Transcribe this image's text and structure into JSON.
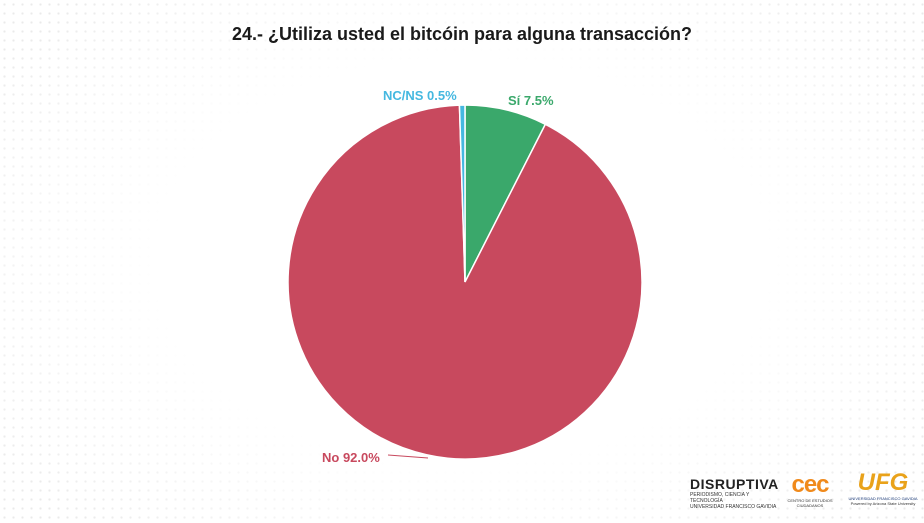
{
  "title": "24.- ¿Utiliza usted el bitcóin para alguna transacción?",
  "chart_data": {
    "type": "pie",
    "title": "24.- ¿Utiliza usted el bitcóin para alguna transacción?",
    "slices": [
      {
        "label": "Sí",
        "value": 7.5,
        "display": "Sí 7.5%",
        "color": "#3aa86b"
      },
      {
        "label": "No",
        "value": 92.0,
        "display": "No 92.0%",
        "color": "#c8495e"
      },
      {
        "label": "NC/NS",
        "value": 0.5,
        "display": "NC/NS 0.5%",
        "color": "#45b8e0"
      }
    ],
    "start": "12 o'clock",
    "direction": "clockwise"
  },
  "logos": {
    "disruptiva": {
      "name": "DISRUPTIVA",
      "line1": "PERIODISMO, CIENCIA Y TECNOLOGÍA",
      "line2": "UNIVERSIDAD FRANCISCO GAVIDIA"
    },
    "cec": {
      "name": "cec",
      "line1": "CENTRO DE ESTUDIOS CIUDADANOS"
    },
    "ufg": {
      "name": "UFG",
      "line1": "UNIVERSIDAD FRANCISCO GAVIDIA",
      "line2": "Powered by Arizona State University"
    }
  }
}
